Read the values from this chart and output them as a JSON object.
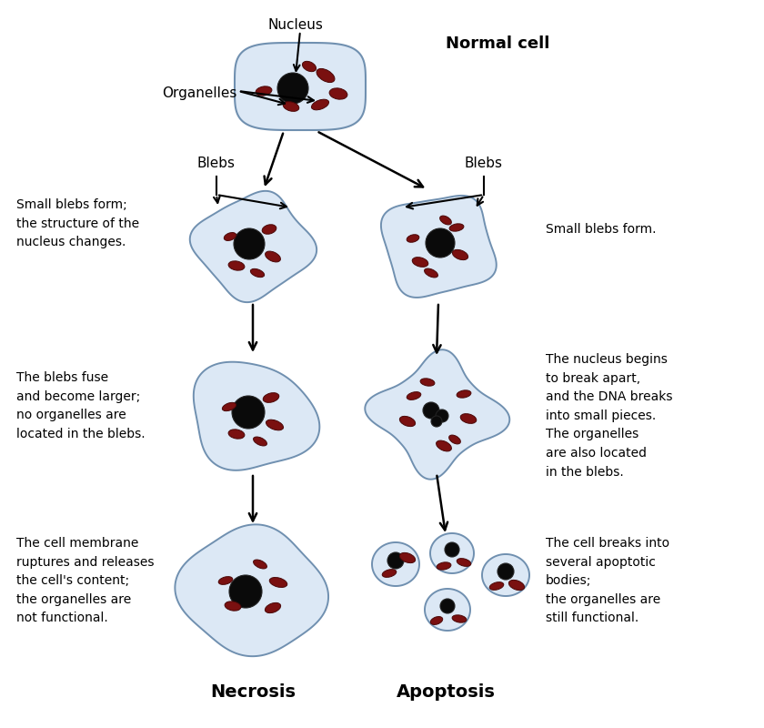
{
  "background_color": "#ffffff",
  "cell_fill": "#dce8f5",
  "cell_edge": "#7090b0",
  "nucleus_fill": "#0a0a0a",
  "organelle_fill": "#7a1010",
  "title": "Normal cell",
  "label_necrosis": "Necrosis",
  "label_apoptosis": "Apoptosis",
  "label_nucleus": "Nucleus",
  "label_organelles": "Organelles",
  "label_blebs_left": "Blebs",
  "label_blebs_right": "Blebs",
  "text_left_1": "Small blebs form;\nthe structure of the\nnucleus changes.",
  "text_left_2": "The blebs fuse\nand become larger;\nno organelles are\nlocated in the blebs.",
  "text_left_3": "The cell membrane\nruptures and releases\nthe cell's content;\nthe organelles are\nnot functional.",
  "text_right_1": "Small blebs form.",
  "text_right_2": "The nucleus begins\nto break apart,\nand the DNA breaks\ninto small pieces.\nThe organelles\nare also located\nin the blebs.",
  "text_right_3": "The cell breaks into\nseveral apoptotic\nbodies;\nthe organelles are\nstill functional."
}
